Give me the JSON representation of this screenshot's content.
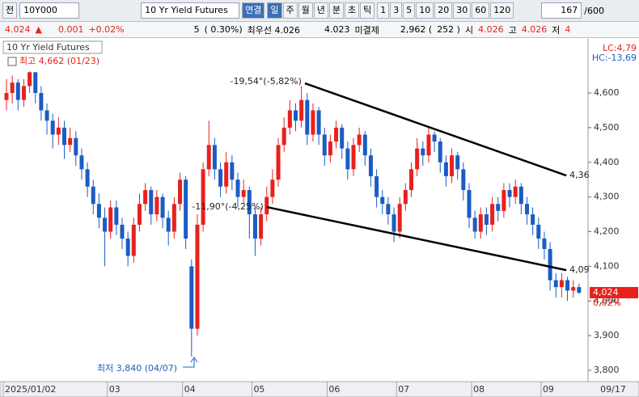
{
  "toolbar": {
    "tab": "전",
    "code": "10Y000",
    "name": "10 Yr Yield Futures",
    "link": "연결",
    "periods": [
      "일",
      "주",
      "월",
      "년",
      "분",
      "초",
      "틱"
    ],
    "intervals": [
      "1",
      "3",
      "5",
      "10",
      "20",
      "30",
      "60",
      "120"
    ],
    "count": "167",
    "max": "/600"
  },
  "quote": {
    "price": "4.024",
    "arrow": "▲",
    "change": "0.001",
    "pct": "+0.02%",
    "volume": "5",
    "vol_pct": "( 0.30%)",
    "best": "최우선 4.026",
    "bid": "4.023",
    "oi_label": "미결제",
    "oi": "2,962 (",
    "oi_chg": "252 )",
    "open_label": "시",
    "open": "4.026",
    "high_label": "고",
    "high": "4.026",
    "low_label": "저",
    "low": "4"
  },
  "chart_data": {
    "type": "candlestick",
    "title": "10 Yr Yield Futures",
    "high_note": "최고 4,662 (01/23)",
    "low_note": "최저 3,840 (04/07)",
    "categories": [
      "2025/01/02",
      null,
      null,
      null,
      null,
      null,
      null,
      null,
      null,
      null,
      null,
      null,
      null,
      null,
      null,
      null,
      null,
      null,
      "03",
      null,
      null,
      null,
      null,
      null,
      null,
      null,
      null,
      null,
      null,
      null,
      null,
      "04",
      null,
      null,
      null,
      null,
      null,
      null,
      null,
      null,
      null,
      null,
      null,
      "05",
      null,
      null,
      null,
      null,
      null,
      null,
      null,
      null,
      null,
      null,
      null,
      null,
      "06",
      null,
      null,
      null,
      null,
      null,
      null,
      null,
      null,
      null,
      null,
      null,
      "07",
      null,
      null,
      null,
      null,
      null,
      null,
      null,
      null,
      null,
      null,
      null,
      null,
      "08",
      null,
      null,
      null,
      null,
      null,
      null,
      null,
      null,
      null,
      null,
      null,
      "09",
      null,
      null,
      null,
      null,
      null,
      null
    ],
    "open": [
      4.58,
      4.6,
      4.63,
      4.58,
      4.62,
      4.66,
      4.6,
      4.55,
      4.52,
      4.48,
      4.5,
      4.45,
      4.47,
      4.42,
      4.38,
      4.33,
      4.28,
      4.24,
      4.2,
      4.27,
      4.22,
      4.18,
      4.13,
      4.22,
      4.28,
      4.32,
      4.25,
      4.3,
      4.24,
      4.2,
      4.28,
      4.35,
      4.1,
      3.92,
      4.22,
      4.38,
      4.45,
      4.38,
      4.33,
      4.4,
      4.35,
      4.3,
      4.32,
      4.25,
      4.18,
      4.25,
      4.3,
      4.35,
      4.45,
      4.5,
      4.55,
      4.52,
      4.58,
      4.48,
      4.55,
      4.48,
      4.42,
      4.46,
      4.5,
      4.44,
      4.38,
      4.45,
      4.48,
      4.42,
      4.36,
      4.3,
      4.28,
      4.25,
      4.2,
      4.28,
      4.32,
      4.38,
      4.44,
      4.42,
      4.48,
      4.46,
      4.4,
      4.36,
      4.42,
      4.38,
      4.32,
      4.24,
      4.2,
      4.25,
      4.22,
      4.28,
      4.26,
      4.32,
      4.3,
      4.33,
      4.28,
      4.25,
      4.22,
      4.18,
      4.15,
      4.06,
      4.04,
      4.06,
      4.03,
      4.04
    ],
    "high": [
      4.64,
      4.65,
      4.64,
      4.64,
      4.662,
      4.66,
      4.62,
      4.57,
      4.54,
      4.53,
      4.52,
      4.5,
      4.49,
      4.44,
      4.4,
      4.35,
      4.31,
      4.27,
      4.29,
      4.29,
      4.24,
      4.2,
      4.24,
      4.31,
      4.34,
      4.33,
      4.32,
      4.31,
      4.26,
      4.3,
      4.37,
      4.36,
      4.12,
      4.25,
      4.4,
      4.52,
      4.47,
      4.4,
      4.43,
      4.42,
      4.37,
      4.35,
      4.33,
      4.27,
      4.27,
      4.33,
      4.38,
      4.47,
      4.53,
      4.58,
      4.57,
      4.62,
      4.6,
      4.57,
      4.56,
      4.5,
      4.48,
      4.52,
      4.51,
      4.46,
      4.47,
      4.5,
      4.49,
      4.44,
      4.38,
      4.32,
      4.3,
      4.27,
      4.3,
      4.34,
      4.4,
      4.47,
      4.46,
      4.5,
      4.49,
      4.47,
      4.42,
      4.44,
      4.43,
      4.4,
      4.34,
      4.26,
      4.27,
      4.27,
      4.3,
      4.3,
      4.34,
      4.34,
      4.35,
      4.34,
      4.3,
      4.27,
      4.24,
      4.2,
      4.17,
      4.08,
      4.08,
      4.07,
      4.06,
      4.05
    ],
    "low": [
      4.55,
      4.57,
      4.55,
      4.56,
      4.6,
      4.57,
      4.52,
      4.48,
      4.44,
      4.45,
      4.41,
      4.43,
      4.39,
      4.35,
      4.3,
      4.25,
      4.21,
      4.1,
      4.18,
      4.19,
      4.15,
      4.1,
      4.11,
      4.2,
      4.26,
      4.22,
      4.23,
      4.21,
      4.16,
      4.18,
      4.26,
      4.15,
      3.84,
      3.9,
      4.2,
      4.36,
      4.35,
      4.3,
      4.31,
      4.32,
      4.27,
      4.28,
      4.18,
      4.13,
      4.16,
      4.23,
      4.28,
      4.33,
      4.43,
      4.48,
      4.49,
      4.5,
      4.45,
      4.46,
      4.45,
      4.39,
      4.4,
      4.44,
      4.41,
      4.35,
      4.36,
      4.43,
      4.39,
      4.33,
      4.27,
      4.25,
      4.22,
      4.17,
      4.18,
      4.26,
      4.3,
      4.36,
      4.39,
      4.4,
      4.43,
      4.37,
      4.33,
      4.34,
      4.35,
      4.29,
      4.21,
      4.18,
      4.18,
      4.19,
      4.2,
      4.23,
      4.24,
      4.27,
      4.28,
      4.25,
      4.22,
      4.19,
      4.15,
      4.12,
      4.03,
      4.01,
      4.01,
      4.0,
      4.01,
      4.02
    ],
    "close": [
      4.6,
      4.63,
      4.58,
      4.62,
      4.66,
      4.6,
      4.55,
      4.52,
      4.48,
      4.5,
      4.45,
      4.47,
      4.42,
      4.38,
      4.33,
      4.28,
      4.24,
      4.2,
      4.27,
      4.22,
      4.18,
      4.13,
      4.22,
      4.28,
      4.32,
      4.25,
      4.3,
      4.24,
      4.2,
      4.28,
      4.35,
      4.18,
      3.92,
      4.22,
      4.38,
      4.45,
      4.38,
      4.33,
      4.4,
      4.35,
      4.3,
      4.32,
      4.25,
      4.18,
      4.25,
      4.3,
      4.35,
      4.45,
      4.5,
      4.55,
      4.52,
      4.58,
      4.48,
      4.55,
      4.48,
      4.42,
      4.46,
      4.5,
      4.44,
      4.38,
      4.45,
      4.48,
      4.42,
      4.36,
      4.3,
      4.28,
      4.25,
      4.2,
      4.28,
      4.32,
      4.38,
      4.44,
      4.42,
      4.48,
      4.46,
      4.4,
      4.36,
      4.42,
      4.38,
      4.32,
      4.24,
      4.2,
      4.25,
      4.22,
      4.28,
      4.26,
      4.32,
      4.3,
      4.33,
      4.28,
      4.25,
      4.22,
      4.18,
      4.15,
      4.06,
      4.04,
      4.06,
      4.03,
      4.04,
      4.024
    ],
    "up_color": "#e8211d",
    "down_color": "#1b5cc4",
    "ylim": [
      3.772,
      4.747
    ],
    "yticks": [
      {
        "value": 3.8,
        "label": "3,800"
      },
      {
        "value": 3.9,
        "label": "3,900"
      },
      {
        "value": 4.0,
        "label": "4,000"
      },
      {
        "value": 4.1,
        "label": "4,100"
      },
      {
        "value": 4.2,
        "label": "4,200"
      },
      {
        "value": 4.3,
        "label": "4,300"
      },
      {
        "value": 4.4,
        "label": "4,400"
      },
      {
        "value": 4.5,
        "label": "4,500"
      },
      {
        "value": 4.6,
        "label": "4,600"
      }
    ],
    "grid": false,
    "last_label": "4,024",
    "last_pct": "0,02%",
    "lc": "LC:4,79",
    "hc": "HC:-13,69",
    "last_date": "09/17",
    "trendlines": [
      {
        "x": [
          51.6,
          96.8
        ],
        "y": [
          4.628,
          4.362
        ],
        "label": "-19,54°(-5,82%)",
        "end_label": "4,36"
      },
      {
        "x": [
          45,
          96.8
        ],
        "y": [
          4.271,
          4.089
        ],
        "label": "-11,90°(-4,25%)",
        "end_label": "4,09"
      }
    ]
  }
}
